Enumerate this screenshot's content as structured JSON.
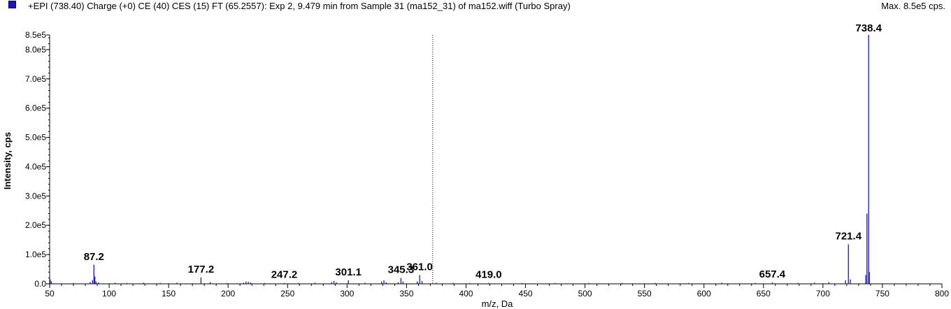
{
  "header": {
    "legend_color": "#1414c8",
    "title": "+EPI (738.40) Charge (+0) CE (40) CES (15) FT (65.2557): Exp 2, 9.479 min from Sample 31 (ma152_31) of ma152.wiff (Turbo Spray)",
    "max_label": "Max. 8.5e5 cps."
  },
  "chart_data": {
    "type": "bar",
    "xlabel": "m/z, Da",
    "ylabel": "Intensity, cps",
    "xlim": [
      50,
      800
    ],
    "ylim": [
      0,
      850000
    ],
    "x_ticks": [
      "50",
      "100",
      "150",
      "200",
      "250",
      "300",
      "350",
      "400",
      "450",
      "500",
      "550",
      "600",
      "650",
      "700",
      "750",
      "800"
    ],
    "y_ticks": [
      "0.0",
      "1.0e5",
      "2.0e5",
      "3.0e5",
      "4.0e5",
      "5.0e5",
      "6.0e5",
      "7.0e5",
      "8.0e5",
      "8.5e5"
    ],
    "series_color": "#1414c8",
    "cursor_x": 372,
    "peaks": [
      [
        50.5,
        15000
      ],
      [
        51.5,
        8000
      ],
      [
        70,
        3000
      ],
      [
        84,
        6000
      ],
      [
        86,
        12000
      ],
      [
        87.2,
        65000
      ],
      [
        88,
        25000
      ],
      [
        89,
        8000
      ],
      [
        91,
        5000
      ],
      [
        105,
        4000
      ],
      [
        115,
        3000
      ],
      [
        129,
        4000
      ],
      [
        143,
        3000
      ],
      [
        157,
        4000
      ],
      [
        177.2,
        22000
      ],
      [
        185,
        6000
      ],
      [
        199,
        3000
      ],
      [
        213,
        4000
      ],
      [
        215,
        8000
      ],
      [
        217,
        7000
      ],
      [
        219,
        5000
      ],
      [
        231,
        3000
      ],
      [
        247.2,
        3000
      ],
      [
        259,
        3000
      ],
      [
        273,
        4000
      ],
      [
        287,
        6000
      ],
      [
        289,
        10000
      ],
      [
        291,
        5000
      ],
      [
        301.1,
        12000
      ],
      [
        315,
        4000
      ],
      [
        329,
        8000
      ],
      [
        331,
        12000
      ],
      [
        333,
        5000
      ],
      [
        343,
        6000
      ],
      [
        345.3,
        20000
      ],
      [
        347,
        8000
      ],
      [
        359,
        8000
      ],
      [
        361.0,
        30000
      ],
      [
        363,
        10000
      ],
      [
        375,
        4000
      ],
      [
        389,
        3000
      ],
      [
        403,
        3000
      ],
      [
        419.0,
        3000
      ],
      [
        447,
        3000
      ],
      [
        475,
        3000
      ],
      [
        503,
        3000
      ],
      [
        531,
        3000
      ],
      [
        559,
        3000
      ],
      [
        587,
        3000
      ],
      [
        615,
        4000
      ],
      [
        643,
        3000
      ],
      [
        657.4,
        5000
      ],
      [
        679,
        3000
      ],
      [
        693,
        4000
      ],
      [
        705,
        6000
      ],
      [
        719,
        12000
      ],
      [
        721.4,
        135000
      ],
      [
        723,
        15000
      ],
      [
        736,
        30000
      ],
      [
        737,
        240000
      ],
      [
        738.4,
        850000
      ],
      [
        739,
        40000
      ]
    ],
    "annotations": [
      {
        "label": "87.2",
        "x": 87.2,
        "y": 65000
      },
      {
        "label": "177.2",
        "x": 177.2,
        "y": 22000
      },
      {
        "label": "247.2",
        "x": 247.2,
        "y": 3000
      },
      {
        "label": "301.1",
        "x": 301.1,
        "y": 12000
      },
      {
        "label": "345.3",
        "x": 345.3,
        "y": 20000
      },
      {
        "label": "361.0",
        "x": 361.0,
        "y": 30000
      },
      {
        "label": "419.0",
        "x": 419.0,
        "y": 3000
      },
      {
        "label": "657.4",
        "x": 657.4,
        "y": 5000
      },
      {
        "label": "721.4",
        "x": 721.4,
        "y": 135000
      },
      {
        "label": "738.4",
        "x": 738.4,
        "y": 850000
      }
    ]
  }
}
